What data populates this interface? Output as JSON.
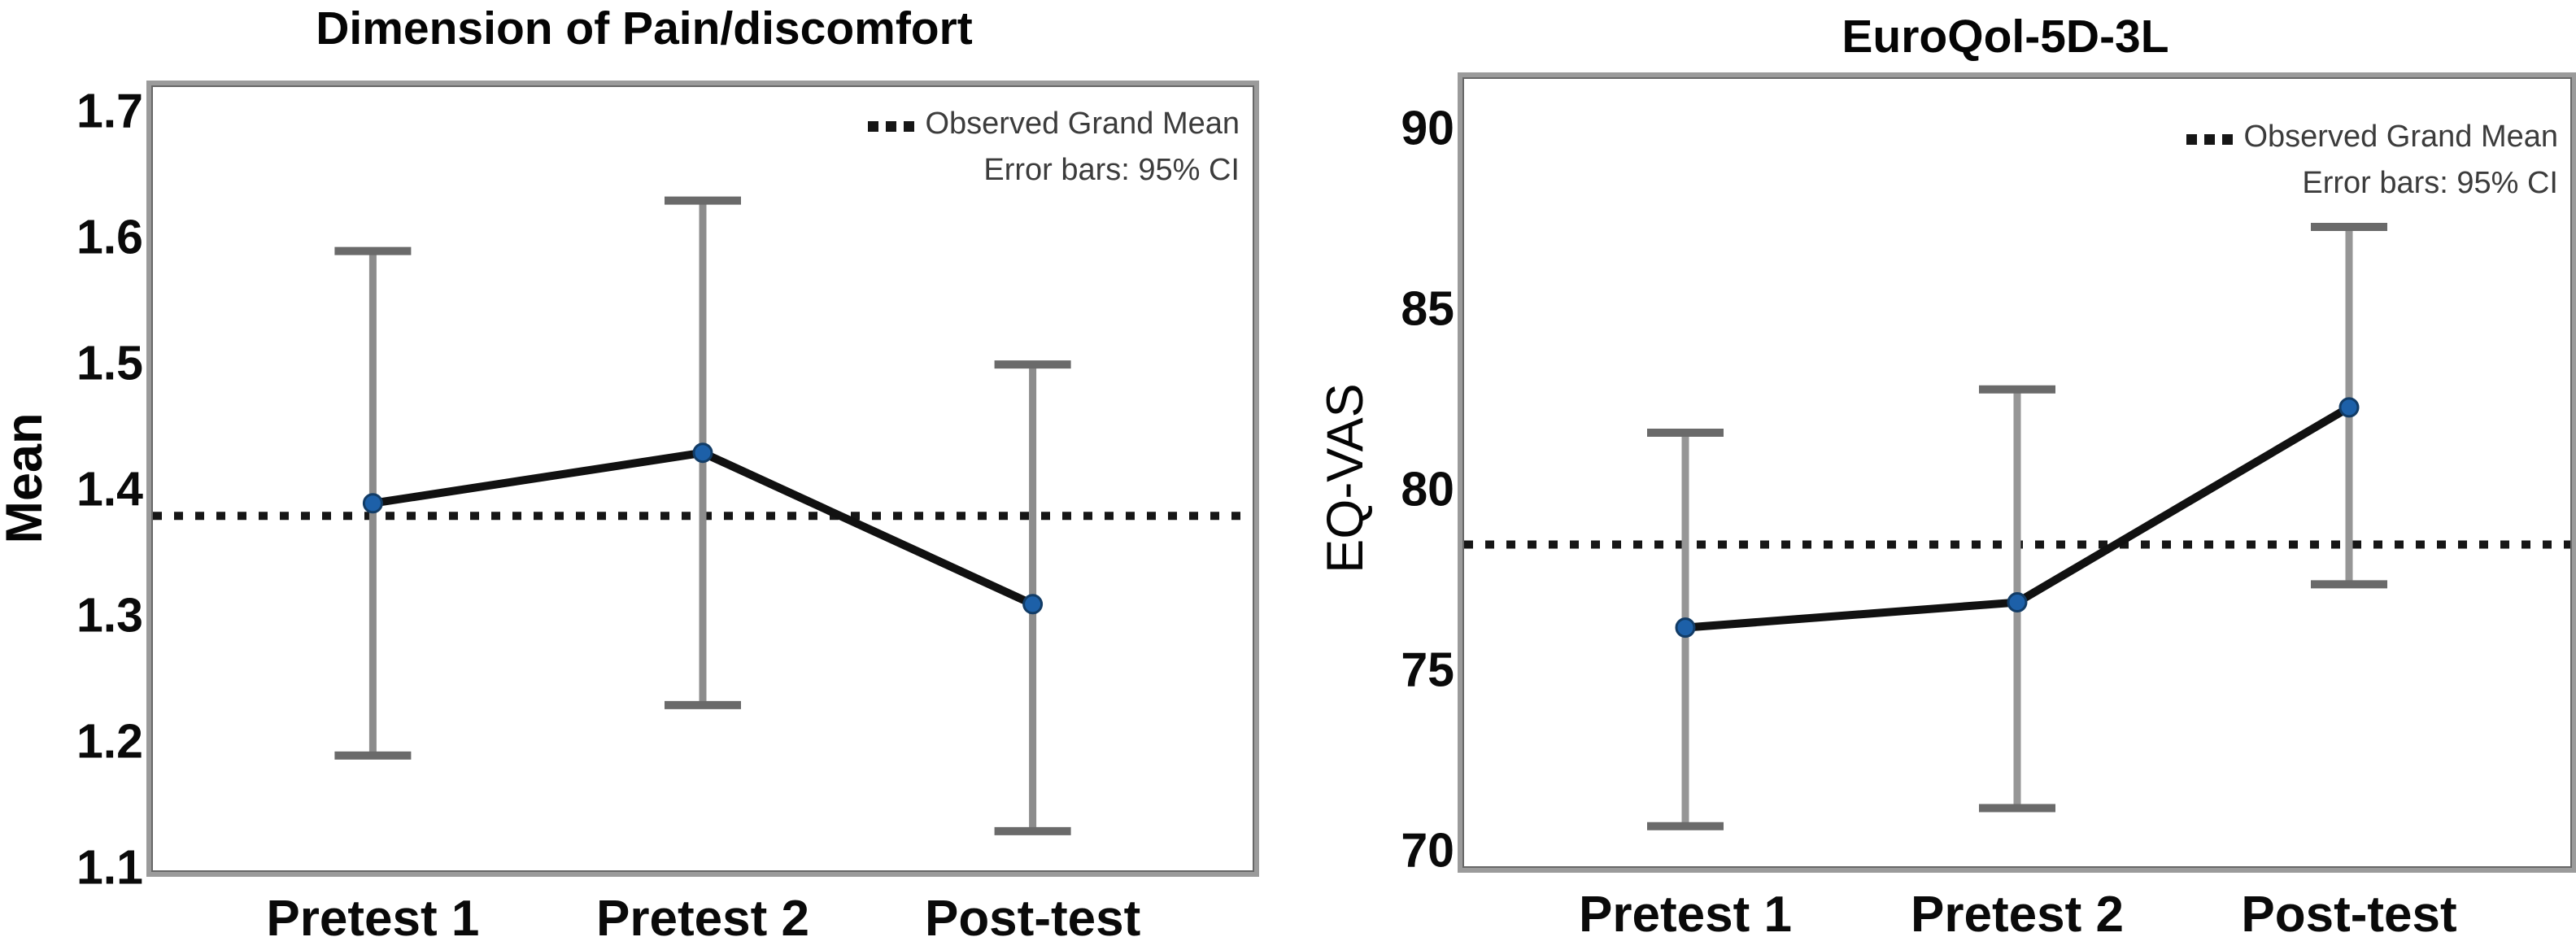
{
  "figure_background": "#ffffff",
  "chart_data": [
    {
      "type": "line",
      "title": "Dimension of Pain/discomfort",
      "ylabel": "Mean",
      "xlabel": "",
      "categories": [
        "Pretest 1",
        "Pretest 2",
        "Post-test"
      ],
      "series": [
        {
          "name": "Mean",
          "values": [
            1.39,
            1.43,
            1.31
          ],
          "ci_lower": [
            1.19,
            1.23,
            1.13
          ],
          "ci_upper": [
            1.59,
            1.63,
            1.5
          ]
        }
      ],
      "grand_mean": 1.38,
      "yticks": [
        "1.1",
        "1.2",
        "1.3",
        "1.4",
        "1.5",
        "1.6",
        "1.7"
      ],
      "ylim": [
        1.099,
        1.72
      ],
      "grid": false,
      "legend": [
        "Observed Grand Mean",
        "Error bars: 95% CI"
      ],
      "legend_position": "top-right",
      "colors": {
        "marker": "#1d60a8",
        "marker_edge": "#123c66",
        "trend_line": "#111111",
        "error_bar_shaft": "#8c8c8c",
        "error_bar_cap": "#6a6a6a",
        "grand_mean_line": "#161616"
      }
    },
    {
      "type": "line",
      "title": "EuroQol-5D-3L",
      "ylabel": "EQ-VAS",
      "xlabel": "",
      "categories": [
        "Pretest 1",
        "Pretest 2",
        "Post-test"
      ],
      "series": [
        {
          "name": "EQ-VAS",
          "values": [
            76.2,
            76.9,
            82.3
          ],
          "ci_lower": [
            70.7,
            71.2,
            77.4
          ],
          "ci_upper": [
            81.6,
            82.8,
            87.3
          ]
        }
      ],
      "grand_mean": 78.5,
      "yticks": [
        "70",
        "75",
        "80",
        "85",
        "90"
      ],
      "ylim": [
        69.59,
        91.4
      ],
      "grid": false,
      "legend": [
        "Observed Grand Mean",
        "Error bars: 95% CI"
      ],
      "legend_position": "top-right",
      "colors": {
        "marker": "#1d60a8",
        "marker_edge": "#123c66",
        "trend_line": "#111111",
        "error_bar_shaft": "#969696",
        "error_bar_cap": "#6a6a6a",
        "grand_mean_line": "#161616"
      }
    }
  ]
}
